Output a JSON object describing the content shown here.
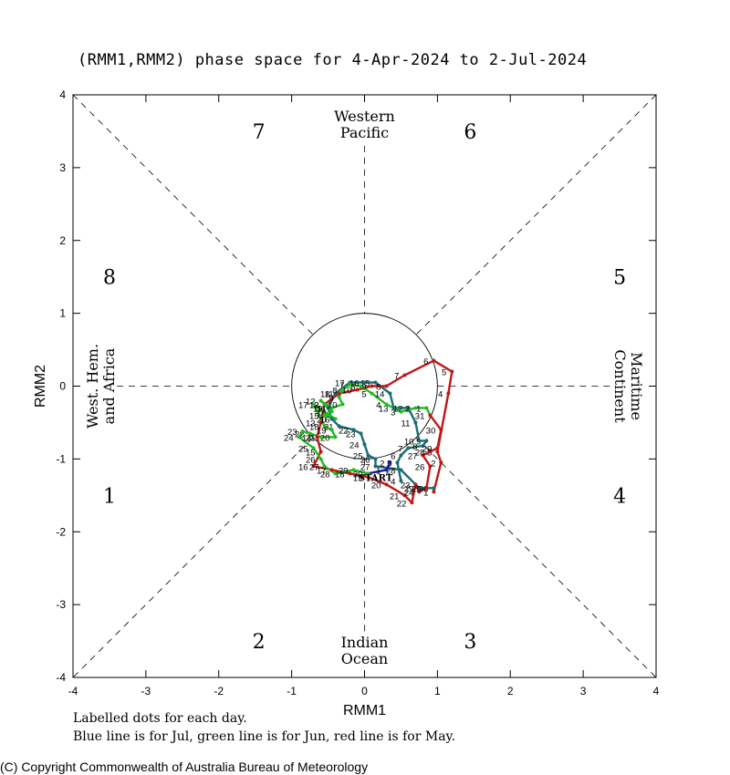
{
  "title": "(RMM1,RMM2) phase space for  4-Apr-2024 to  2-Jul-2024",
  "notes": {
    "line1": "Labelled dots for each day.",
    "line2": "Blue line is for Jul, green line is for Jun, red line is for May."
  },
  "copyright": "(C) Copyright Commonwealth of Australia Bureau of Meteorology",
  "colors": {
    "may": "#c01818",
    "jun": "#22bb22",
    "teal": "#166e72",
    "jul": "#1a1aa0",
    "axis": "#000000"
  },
  "chart_data": {
    "type": "line",
    "title": "(RMM1,RMM2) phase space for  4-Apr-2024 to  2-Jul-2024",
    "xlabel": "RMM1",
    "ylabel": "RMM2",
    "xlim": [
      -4,
      4
    ],
    "ylim": [
      -4,
      4
    ],
    "x_ticks": [
      -4,
      -3,
      -2,
      -1,
      0,
      1,
      2,
      3,
      4
    ],
    "y_ticks": [
      -4,
      -3,
      -2,
      -1,
      0,
      1,
      2,
      3,
      4
    ],
    "x_tick_labels": [
      "-4",
      "-3",
      "-2",
      "-1",
      "0",
      "1",
      "2",
      "3",
      "4"
    ],
    "y_tick_labels": [
      "-4",
      "-3",
      "-2",
      "-1",
      "0",
      "1",
      "2",
      "3",
      "4"
    ],
    "unit_circle_radius": 1,
    "phase_numbers": [
      {
        "label": "1",
        "x": -3.5,
        "y": -1.5
      },
      {
        "label": "2",
        "x": -1.45,
        "y": -3.5
      },
      {
        "label": "3",
        "x": 1.45,
        "y": -3.5
      },
      {
        "label": "4",
        "x": 3.5,
        "y": -1.5
      },
      {
        "label": "5",
        "x": 3.5,
        "y": 1.5
      },
      {
        "label": "6",
        "x": 1.45,
        "y": 3.5
      },
      {
        "label": "7",
        "x": -1.45,
        "y": 3.5
      },
      {
        "label": "8",
        "x": -3.5,
        "y": 1.5
      }
    ],
    "region_labels": {
      "top": [
        "Western",
        "Pacific"
      ],
      "bottom": [
        "Indian",
        "Ocean"
      ],
      "left": [
        "West. Hem.",
        "and Africa"
      ],
      "right": [
        "Maritime",
        "Continent"
      ]
    },
    "start_label": {
      "text": "START",
      "x": 0.15,
      "y": -1.25
    },
    "series": [
      {
        "name": "Apr",
        "color_key": "teal",
        "points": [
          {
            "d": "4",
            "x": 0.5,
            "y": -1.3
          },
          {
            "d": "5",
            "x": 0.45,
            "y": -1.05
          },
          {
            "d": "6",
            "x": 0.5,
            "y": -0.95
          },
          {
            "d": "7",
            "x": 0.6,
            "y": -0.85
          },
          {
            "d": "8",
            "x": 0.8,
            "y": -0.82
          },
          {
            "d": "9",
            "x": 0.85,
            "y": -0.75
          },
          {
            "d": "10",
            "x": 0.75,
            "y": -0.75
          },
          {
            "d": "11",
            "x": 0.7,
            "y": -0.5
          },
          {
            "d": "12",
            "x": 0.6,
            "y": -0.3
          },
          {
            "d": "13",
            "x": 0.4,
            "y": -0.3
          },
          {
            "d": "14",
            "x": 0.35,
            "y": -0.1
          },
          {
            "d": "15",
            "x": 0.15,
            "y": 0.05
          },
          {
            "d": "16",
            "x": 0.0,
            "y": 0.05
          },
          {
            "d": "17",
            "x": -0.2,
            "y": 0.05
          },
          {
            "d": "18",
            "x": -0.4,
            "y": -0.1
          },
          {
            "d": "19",
            "x": -0.5,
            "y": -0.3
          },
          {
            "d": "20",
            "x": -0.45,
            "y": -0.45
          },
          {
            "d": "21",
            "x": -0.35,
            "y": -0.55
          },
          {
            "d": "22",
            "x": -0.15,
            "y": -0.6
          },
          {
            "d": "23",
            "x": -0.05,
            "y": -0.65
          },
          {
            "d": "24",
            "x": 0.0,
            "y": -0.8
          },
          {
            "d": "25",
            "x": 0.05,
            "y": -0.95
          },
          {
            "d": "26",
            "x": 0.15,
            "y": -1.0
          },
          {
            "d": "27",
            "x": 0.15,
            "y": -1.1
          },
          {
            "d": "28",
            "x": 0.5,
            "y": -1.15
          },
          {
            "d": "29",
            "x": 0.75,
            "y": -1.4
          },
          {
            "d": "30",
            "x": 0.95,
            "y": -1.4
          }
        ]
      },
      {
        "name": "May",
        "color_key": "may",
        "points": [
          {
            "d": "1",
            "x": 0.95,
            "y": -1.45
          },
          {
            "d": "2",
            "x": 1.05,
            "y": -1.05
          },
          {
            "d": "3",
            "x": 1.0,
            "y": -0.9
          },
          {
            "d": "4",
            "x": 1.15,
            "y": -0.1
          },
          {
            "d": "5",
            "x": 1.2,
            "y": 0.2
          },
          {
            "d": "6",
            "x": 0.95,
            "y": 0.35
          },
          {
            "d": "7",
            "x": 0.55,
            "y": 0.15
          },
          {
            "d": "8",
            "x": 0.3,
            "y": 0.0
          },
          {
            "d": "9",
            "x": 0.1,
            "y": 0.0
          },
          {
            "d": "10",
            "x": -0.1,
            "y": -0.05
          },
          {
            "d": "11",
            "x": -0.35,
            "y": -0.1
          },
          {
            "d": "12",
            "x": -0.55,
            "y": -0.25
          },
          {
            "d": "13",
            "x": -0.6,
            "y": -0.5
          },
          {
            "d": "14",
            "x": -0.65,
            "y": -0.7
          },
          {
            "d": "15",
            "x": -0.6,
            "y": -0.9
          },
          {
            "d": "16",
            "x": -0.7,
            "y": -1.1
          },
          {
            "d": "17",
            "x": -0.45,
            "y": -1.15
          },
          {
            "d": "18",
            "x": -0.2,
            "y": -1.2
          },
          {
            "d": "19",
            "x": 0.05,
            "y": -1.25
          },
          {
            "d": "20",
            "x": 0.3,
            "y": -1.35
          },
          {
            "d": "21",
            "x": 0.55,
            "y": -1.5
          },
          {
            "d": "22",
            "x": 0.65,
            "y": -1.6
          },
          {
            "d": "23",
            "x": 0.7,
            "y": -1.35
          },
          {
            "d": "24",
            "x": 0.75,
            "y": -1.45
          },
          {
            "d": "25",
            "x": 0.85,
            "y": -1.4
          },
          {
            "d": "26",
            "x": 0.9,
            "y": -1.1
          },
          {
            "d": "27",
            "x": 0.8,
            "y": -0.95
          },
          {
            "d": "28",
            "x": 0.9,
            "y": -0.9
          },
          {
            "d": "29",
            "x": 1.0,
            "y": -0.85
          },
          {
            "d": "30",
            "x": 1.05,
            "y": -0.6
          },
          {
            "d": "31",
            "x": 0.9,
            "y": -0.4
          }
        ]
      },
      {
        "name": "Jun",
        "color_key": "jun",
        "points": [
          {
            "d": "1",
            "x": 0.85,
            "y": -0.3
          },
          {
            "d": "2",
            "x": 0.7,
            "y": -0.3
          },
          {
            "d": "3",
            "x": 0.5,
            "y": -0.35
          },
          {
            "d": "4",
            "x": 0.3,
            "y": -0.25
          },
          {
            "d": "5",
            "x": 0.1,
            "y": -0.1
          },
          {
            "d": "6",
            "x": -0.05,
            "y": 0.0
          },
          {
            "d": "7",
            "x": -0.2,
            "y": 0.02
          },
          {
            "d": "8",
            "x": -0.3,
            "y": -0.05
          },
          {
            "d": "9",
            "x": -0.35,
            "y": -0.15
          },
          {
            "d": "10",
            "x": -0.3,
            "y": -0.25
          },
          {
            "d": "11",
            "x": -0.45,
            "y": -0.3
          },
          {
            "d": "12",
            "x": -0.6,
            "y": -0.2
          },
          {
            "d": "13",
            "x": -0.55,
            "y": -0.25
          },
          {
            "d": "14",
            "x": -0.45,
            "y": -0.35
          },
          {
            "d": "15",
            "x": -0.55,
            "y": -0.4
          },
          {
            "d": "16",
            "x": -0.4,
            "y": -0.45
          },
          {
            "d": "17",
            "x": -0.7,
            "y": -0.25
          },
          {
            "d": "18",
            "x": -0.55,
            "y": -0.55
          },
          {
            "d": "19",
            "x": -0.45,
            "y": -0.6
          },
          {
            "d": "20",
            "x": -0.4,
            "y": -0.7
          },
          {
            "d": "21",
            "x": -0.6,
            "y": -0.7
          },
          {
            "d": "22",
            "x": -0.75,
            "y": -0.65
          },
          {
            "d": "23",
            "x": -0.85,
            "y": -0.62
          },
          {
            "d": "24",
            "x": -0.9,
            "y": -0.7
          },
          {
            "d": "25",
            "x": -0.7,
            "y": -0.85
          },
          {
            "d": "26",
            "x": -0.6,
            "y": -1.0
          },
          {
            "d": "27",
            "x": -0.55,
            "y": -1.1
          },
          {
            "d": "28",
            "x": -0.4,
            "y": -1.2
          },
          {
            "d": "29",
            "x": -0.15,
            "y": -1.15
          },
          {
            "d": "30",
            "x": 0.05,
            "y": -1.2
          }
        ]
      },
      {
        "name": "Jul",
        "color_key": "jul",
        "points": [
          {
            "d": "1",
            "x": 0.3,
            "y": -1.15
          },
          {
            "d": "2",
            "x": 0.35,
            "y": -1.05
          }
        ]
      }
    ]
  }
}
